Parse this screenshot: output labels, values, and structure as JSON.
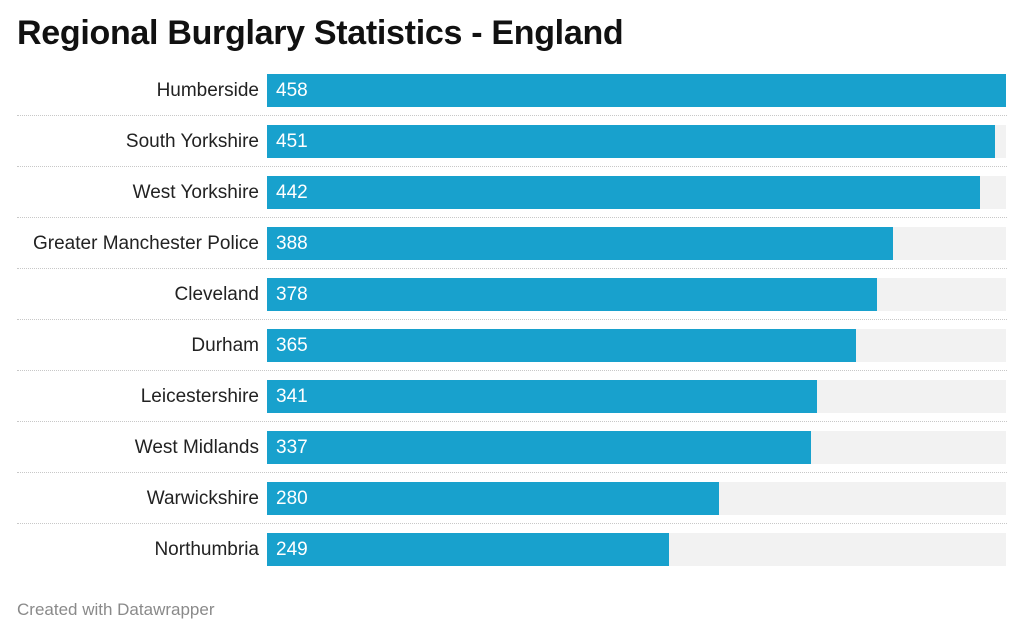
{
  "colors": {
    "bar": "#18a1cd",
    "track": "#f2f2f2"
  },
  "footer": {
    "credit": "Created with Datawrapper"
  },
  "chart_data": {
    "type": "bar",
    "orientation": "horizontal",
    "title": "Regional Burglary Statistics - England",
    "xlabel": "",
    "ylabel": "",
    "xlim": [
      0,
      458
    ],
    "grid": false,
    "legend": "none",
    "categories": [
      "Humberside",
      "South Yorkshire",
      "West Yorkshire",
      "Greater Manchester Police",
      "Cleveland",
      "Durham",
      "Leicestershire",
      "West Midlands",
      "Warwickshire",
      "Northumbria"
    ],
    "values": [
      458,
      451,
      442,
      388,
      378,
      365,
      341,
      337,
      280,
      249
    ]
  }
}
